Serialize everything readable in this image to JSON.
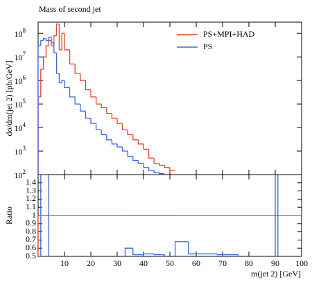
{
  "chart_data": {
    "type": "histogram",
    "title": "Mass of second jet",
    "ylabel": "dσ/dm(jet 2) [pb/GeV]",
    "xlabel": "m(jet 2) [GeV]",
    "log_y": true,
    "legend": "upper right",
    "bins": [
      0,
      1,
      2,
      3,
      4,
      5,
      6,
      7,
      8,
      9,
      10,
      12,
      14,
      16,
      18,
      20,
      22,
      24,
      26,
      28,
      30,
      32,
      34,
      36,
      38,
      40,
      42,
      44,
      46,
      48,
      50,
      52
    ],
    "series": [
      {
        "name": "PS+MPI+HAD",
        "color": "#e8402a",
        "values": [
          200000,
          3000000,
          10000000,
          30000000,
          50000000,
          30000000,
          80000000,
          250000000,
          20000000,
          100000000,
          20000000,
          5000000,
          2000000,
          1000000,
          400000,
          200000,
          100000,
          70000,
          40000,
          25000,
          15000,
          8000,
          5000,
          3000,
          2000,
          1200,
          500,
          300,
          250,
          200,
          150
        ]
      },
      {
        "name": "PS",
        "color": "#3a66e0",
        "values": [
          30000000,
          50000000,
          60000000,
          50000000,
          70000000,
          40000000,
          15000000,
          2000000,
          800000,
          1000000,
          500000,
          200000,
          100000,
          50000,
          25000,
          15000,
          8000,
          5000,
          3000,
          2000,
          1500,
          1000,
          600,
          400,
          300,
          200,
          150,
          120,
          110,
          null,
          null
        ]
      }
    ],
    "xlim": [
      0,
      100
    ],
    "xticks": [
      10,
      20,
      30,
      40,
      50,
      60,
      70,
      80,
      90,
      100
    ],
    "ylim": [
      100,
      300000000
    ],
    "yticks": [
      {
        "value": 100,
        "label": "10",
        "sup": "2"
      },
      {
        "value": 1000,
        "label": "10",
        "sup": "3"
      },
      {
        "value": 10000,
        "label": "10",
        "sup": "4"
      },
      {
        "value": 100000,
        "label": "10",
        "sup": "5"
      },
      {
        "value": 1000000,
        "label": "10",
        "sup": "6"
      },
      {
        "value": 10000000,
        "label": "10",
        "sup": "7"
      },
      {
        "value": 100000000,
        "label": "10",
        "sup": "8"
      }
    ],
    "ratio": {
      "ylabel": "Ratio",
      "ylim": [
        0.5,
        1.5
      ],
      "yticks": [
        0.5,
        0.6,
        0.7,
        0.8,
        0.9,
        1,
        1.1,
        1.2,
        1.3,
        1.4
      ],
      "bins": [
        0,
        1,
        4,
        33,
        36,
        40,
        44,
        48,
        52,
        57,
        62,
        68,
        76,
        90,
        91,
        100
      ],
      "series": [
        {
          "color": "#e8402a",
          "values": [
            1,
            1,
            1,
            1,
            1,
            1,
            1,
            1,
            1,
            1,
            1,
            1,
            1,
            1,
            1
          ]
        },
        {
          "color": "#3a66e0",
          "values": [
            0.3,
            2,
            0.3,
            0.6,
            0.52,
            0.53,
            0.52,
            0.3,
            0.68,
            0.53,
            0.53,
            0.52,
            0.3,
            2,
            0.3
          ]
        }
      ]
    }
  }
}
